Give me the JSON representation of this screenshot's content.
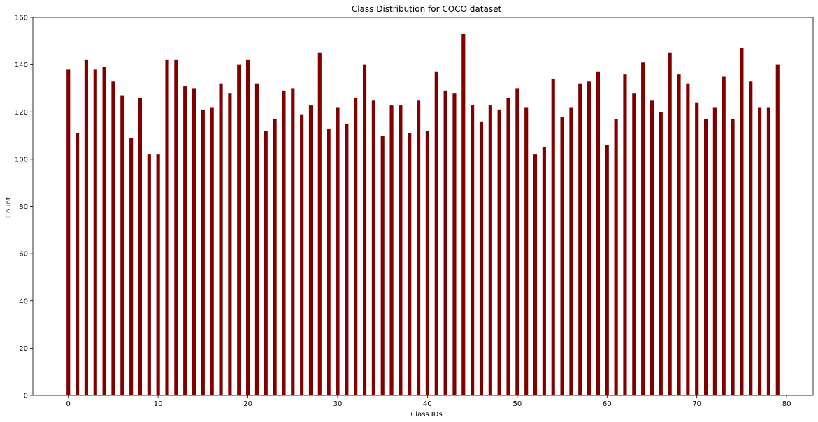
{
  "chart_data": {
    "type": "bar",
    "title": "Class Distribution for COCO dataset",
    "xlabel": "Class IDs",
    "ylabel": "Count",
    "x": [
      0,
      1,
      2,
      3,
      4,
      5,
      6,
      7,
      8,
      9,
      10,
      11,
      12,
      13,
      14,
      15,
      16,
      17,
      18,
      19,
      20,
      21,
      22,
      23,
      24,
      25,
      26,
      27,
      28,
      29,
      30,
      31,
      32,
      33,
      34,
      35,
      36,
      37,
      38,
      39,
      40,
      41,
      42,
      43,
      44,
      45,
      46,
      47,
      48,
      49,
      50,
      51,
      52,
      53,
      54,
      55,
      56,
      57,
      58,
      59,
      60,
      61,
      62,
      63,
      64,
      65,
      66,
      67,
      68,
      69,
      70,
      71,
      72,
      73,
      74,
      75,
      76,
      77,
      78,
      79
    ],
    "values": [
      138,
      111,
      142,
      138,
      139,
      133,
      127,
      109,
      126,
      102,
      102,
      142,
      142,
      131,
      130,
      121,
      122,
      132,
      128,
      140,
      142,
      132,
      112,
      117,
      129,
      130,
      119,
      123,
      145,
      113,
      122,
      115,
      126,
      140,
      125,
      110,
      123,
      123,
      111,
      125,
      112,
      137,
      129,
      128,
      153,
      123,
      116,
      123,
      121,
      126,
      130,
      122,
      102,
      105,
      134,
      118,
      122,
      132,
      133,
      137,
      106,
      117,
      136,
      128,
      141,
      125,
      120,
      145,
      136,
      132,
      124,
      117,
      122,
      135,
      117,
      147,
      133,
      122,
      122,
      140
    ],
    "xlim": [
      -3.95,
      82.95
    ],
    "ylim": [
      0,
      160
    ],
    "xticks": [
      0,
      10,
      20,
      30,
      40,
      50,
      60,
      70,
      80
    ],
    "yticks": [
      0,
      20,
      40,
      60,
      80,
      100,
      120,
      140,
      160
    ],
    "bar_color": "#800000",
    "grid": false,
    "legend": "none"
  }
}
